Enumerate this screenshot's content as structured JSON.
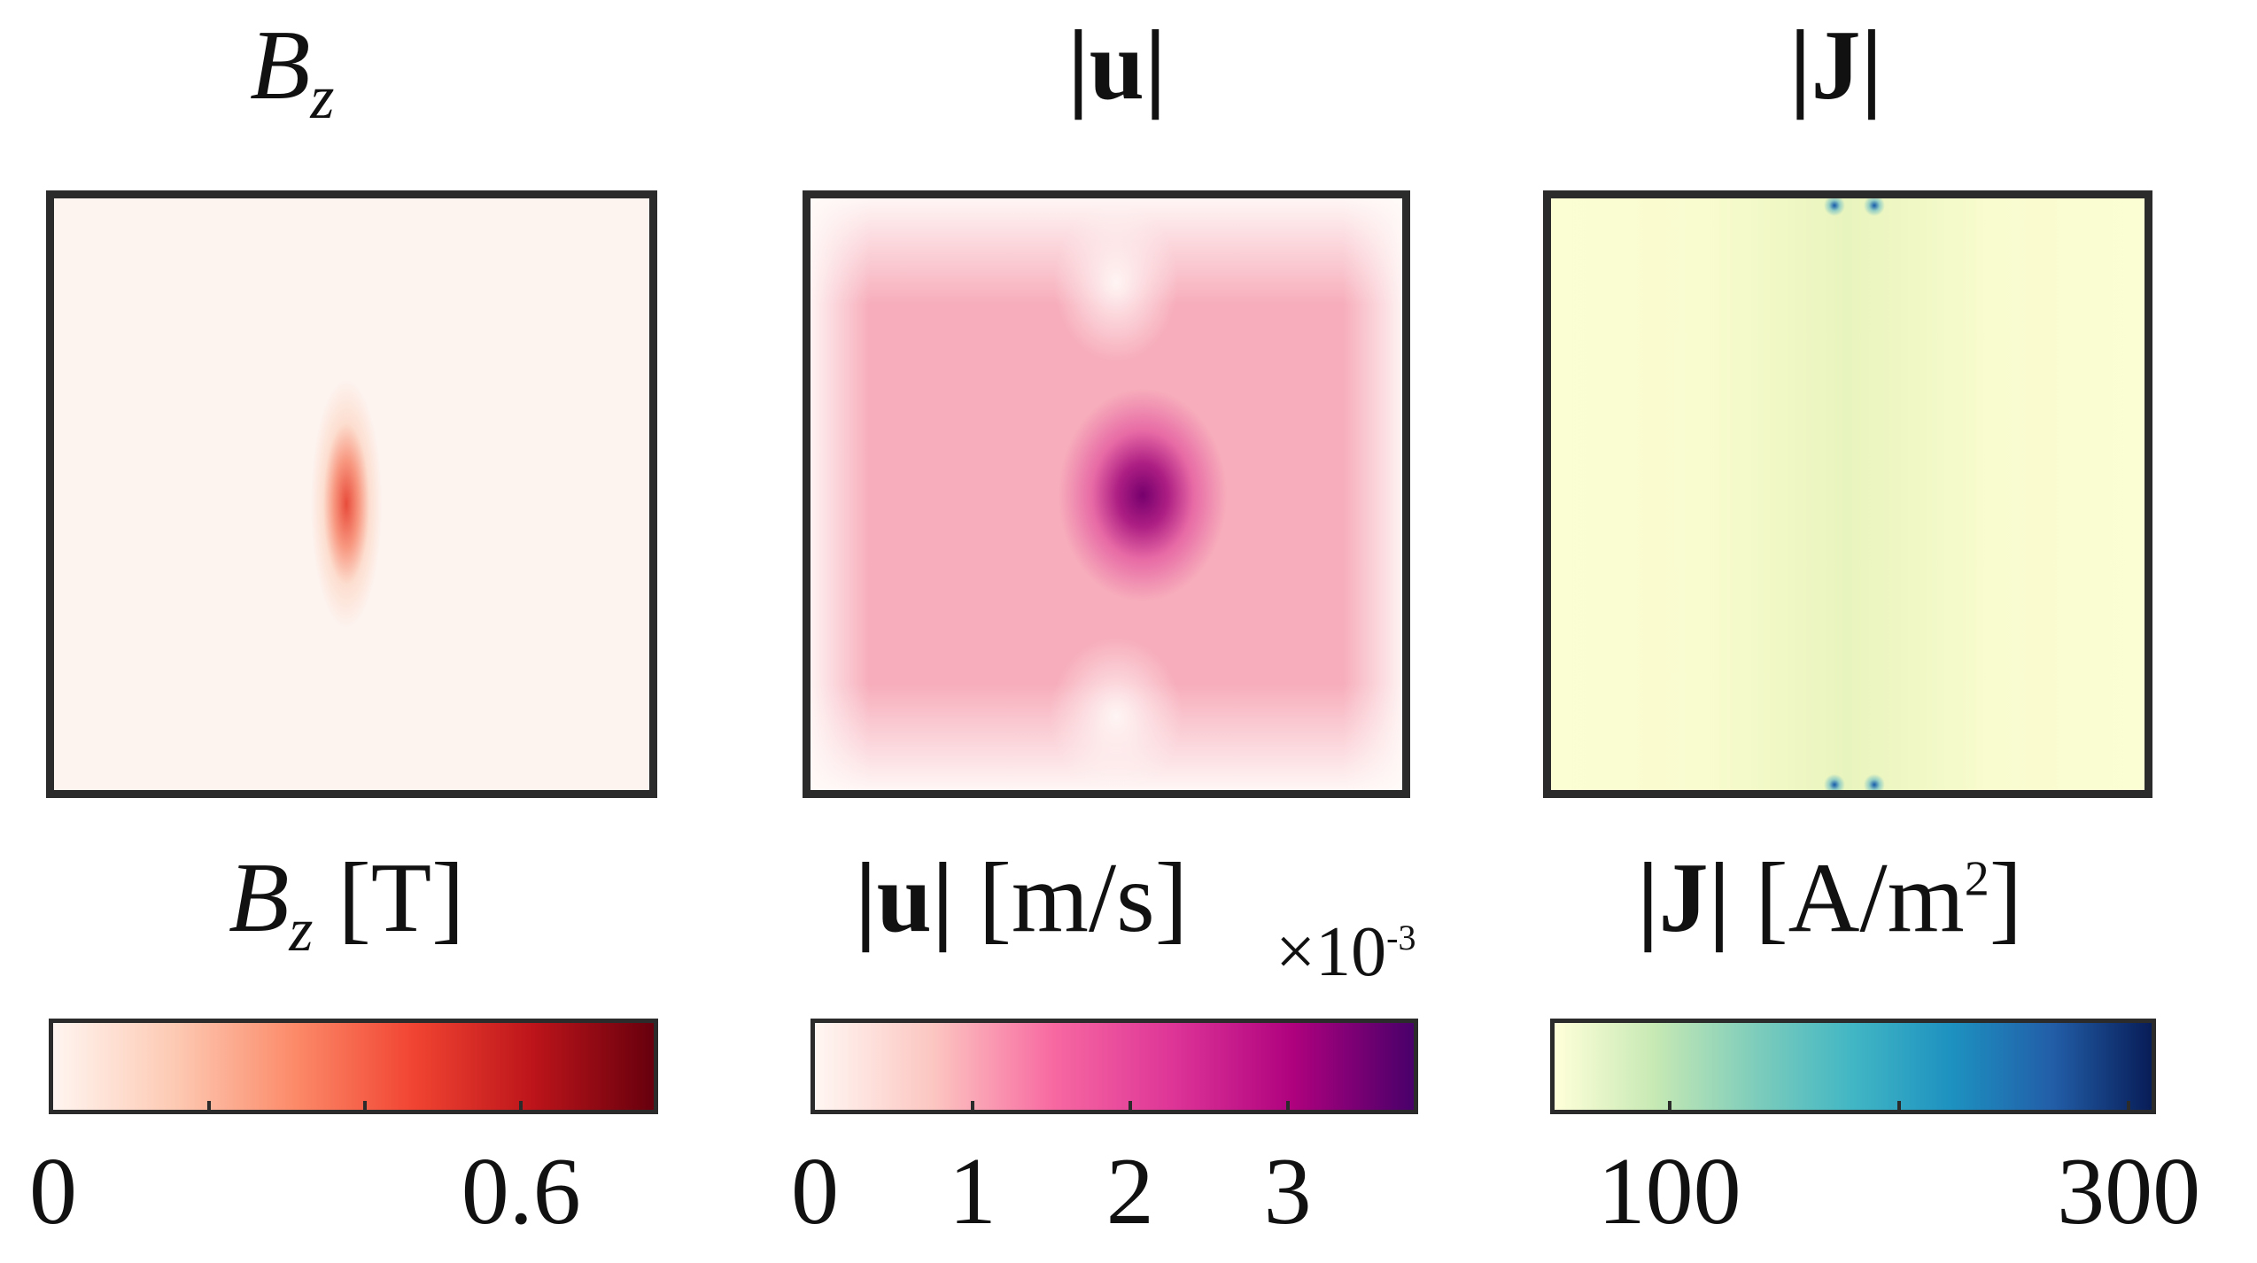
{
  "panels": [
    {
      "id": "bz",
      "title_main": "B",
      "title_sub": "z",
      "cbar_label_main": "B",
      "cbar_label_sub": "z",
      "cbar_label_unit": " [T]",
      "multiplier": "",
      "colormap": [
        "#fff5f0",
        "#fdcab4",
        "#fc8b6a",
        "#f14432",
        "#bc141a",
        "#67000d"
      ],
      "cbar_range": [
        0,
        0.77
      ],
      "ticks": [
        "0",
        "0.6"
      ],
      "tick_values": [
        0,
        0.6
      ],
      "minor_tick_values": [
        0.2,
        0.4,
        0.6
      ]
    },
    {
      "id": "u",
      "title_main": "|u|",
      "cbar_label_main": "|u|",
      "cbar_label_unit": " [m/s]",
      "multiplier": "×10",
      "multiplier_exp": "-3",
      "colormap": [
        "#fff7f3",
        "#fcc5c0",
        "#f768a1",
        "#dd3497",
        "#ae017e",
        "#49006a"
      ],
      "cbar_range": [
        0,
        3.8
      ],
      "ticks": [
        "0",
        "1",
        "2",
        "3"
      ],
      "tick_values": [
        0,
        1,
        2,
        3
      ],
      "minor_tick_values": [
        1,
        2,
        3
      ]
    },
    {
      "id": "j",
      "title_main": "|J|",
      "cbar_label_main": "|J|",
      "cbar_label_unit": " [A/m",
      "cbar_label_sup": "2",
      "cbar_label_tail": "]",
      "multiplier": "",
      "colormap": [
        "#ffffd9",
        "#c7e9b4",
        "#7fcdbb",
        "#41b6c4",
        "#1d91c0",
        "#225ea8",
        "#081d58"
      ],
      "cbar_range": [
        50,
        310
      ],
      "ticks": [
        "100",
        "300"
      ],
      "tick_values": [
        100,
        300
      ],
      "minor_tick_values": [
        100,
        200,
        300
      ]
    }
  ]
}
